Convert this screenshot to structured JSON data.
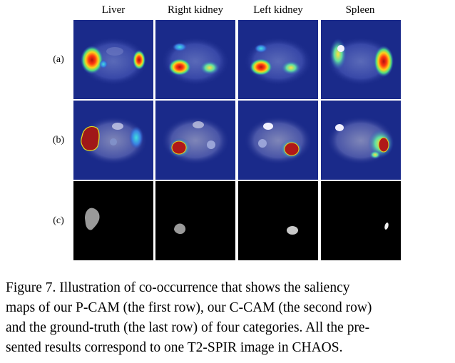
{
  "figure": {
    "columns": [
      "Liver",
      "Right kidney",
      "Left kidney",
      "Spleen"
    ],
    "rows": [
      "(a)",
      "(b)",
      "(c)"
    ],
    "caption_lines": [
      "Figure 7.  Illustration of co-occurrence that shows the saliency",
      "maps of our P-CAM (the first row), our C-CAM (the second row)",
      "and the ground-truth (the last row) of four categories. All the pre-",
      "sented results correspond to one T2-SPIR image in CHAOS."
    ]
  },
  "colors": {
    "heatmap_background": "#1a2a8a",
    "mask_background": "#000000",
    "mask_organ": "#9a9a9a"
  }
}
